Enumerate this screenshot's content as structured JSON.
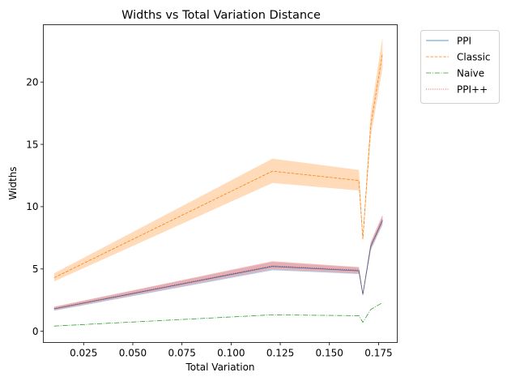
{
  "chart_data": {
    "type": "line",
    "title": "Widths vs Total Variation Distance",
    "xlabel": "Total Variation",
    "ylabel": "Widths",
    "xlim": [
      0.0045,
      0.1845
    ],
    "ylim": [
      -0.9,
      24.6
    ],
    "xticks": [
      0.025,
      0.05,
      0.075,
      0.1,
      0.125,
      0.15,
      0.175
    ],
    "xtick_labels": [
      "0.025",
      "0.050",
      "0.075",
      "0.100",
      "0.125",
      "0.150",
      "0.175"
    ],
    "yticks": [
      0,
      5,
      10,
      15,
      20
    ],
    "ytick_labels": [
      "0",
      "5",
      "10",
      "15",
      "20"
    ],
    "grid": false,
    "legend_position": "outside-top-right",
    "x": [
      0.01,
      0.121,
      0.165,
      0.167,
      0.171,
      0.177
    ],
    "series": [
      {
        "name": "PPI",
        "color": "#1f77b4",
        "linestyle": "solid",
        "values": [
          1.8,
          5.2,
          4.85,
          2.95,
          6.8,
          8.9
        ],
        "band_lower": [
          1.65,
          4.9,
          4.6,
          2.85,
          6.5,
          8.55
        ],
        "band_upper": [
          1.95,
          5.55,
          5.1,
          3.05,
          7.1,
          9.25
        ],
        "band_color": "#9fb7d6"
      },
      {
        "name": "Classic",
        "color": "#ff7f0e",
        "linestyle": "dashed",
        "values": [
          4.3,
          12.85,
          12.1,
          7.4,
          16.5,
          22.3
        ],
        "band_lower": [
          4.0,
          11.9,
          11.3,
          7.1,
          15.6,
          21.1
        ],
        "band_upper": [
          4.65,
          13.85,
          12.95,
          7.7,
          17.5,
          23.6
        ],
        "band_color": "#ffcfa3"
      },
      {
        "name": "Naive",
        "color": "#2ca02c",
        "linestyle": "dashdot",
        "values": [
          0.42,
          1.32,
          1.25,
          0.72,
          1.75,
          2.3
        ],
        "band_lower": [
          0.42,
          1.32,
          1.25,
          0.72,
          1.75,
          2.3
        ],
        "band_upper": [
          0.42,
          1.32,
          1.25,
          0.72,
          1.75,
          2.3
        ],
        "band_color": "#a8d8a8"
      },
      {
        "name": "PPI++",
        "color": "#d62728",
        "linestyle": "dotted",
        "values": [
          1.82,
          5.25,
          4.9,
          2.97,
          6.85,
          8.95
        ],
        "band_lower": [
          1.7,
          5.0,
          4.65,
          2.88,
          6.6,
          8.65
        ],
        "band_upper": [
          1.97,
          5.62,
          5.15,
          3.07,
          7.15,
          9.35
        ],
        "band_color": "#f2a6a6"
      }
    ]
  }
}
